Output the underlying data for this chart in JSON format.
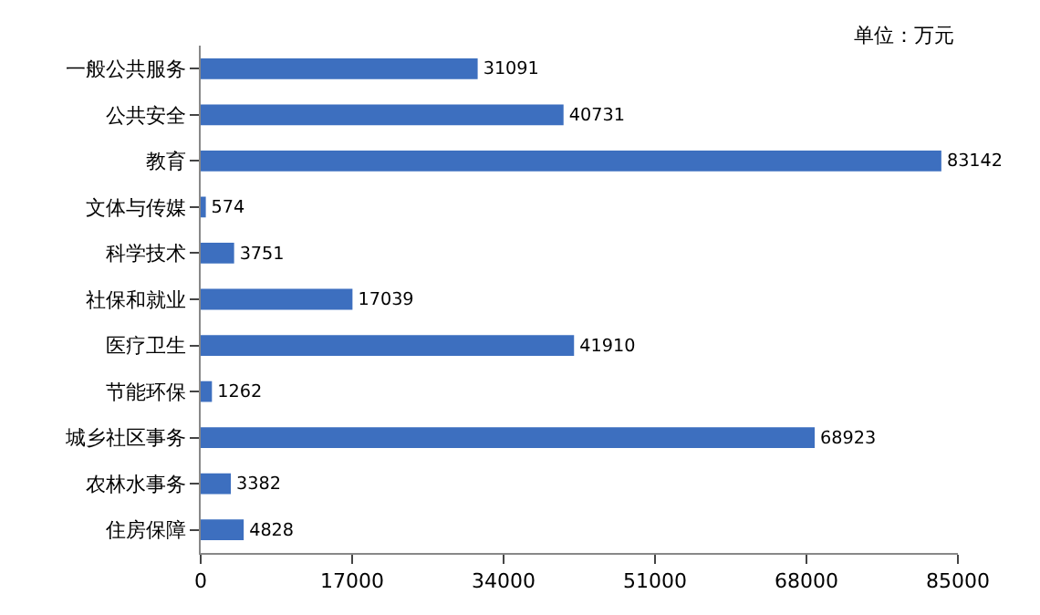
{
  "chart_data": {
    "type": "bar",
    "orientation": "horizontal",
    "categories": [
      "一般公共服务",
      "公共安全",
      "教育",
      "文体与传媒",
      "科学技术",
      "社保和就业",
      "医疗卫生",
      "节能环保",
      "城乡社区事务",
      "农林水事务",
      "住房保障"
    ],
    "values": [
      31091,
      40731,
      83142,
      574,
      3751,
      17039,
      41910,
      1262,
      68923,
      3382,
      4828
    ],
    "color": "#3d6fbf",
    "xlim": [
      0,
      85000
    ],
    "xticks": [
      0,
      17000,
      34000,
      51000,
      68000,
      85000
    ],
    "data_labels": true,
    "annotations": [
      "单位：万元"
    ]
  }
}
